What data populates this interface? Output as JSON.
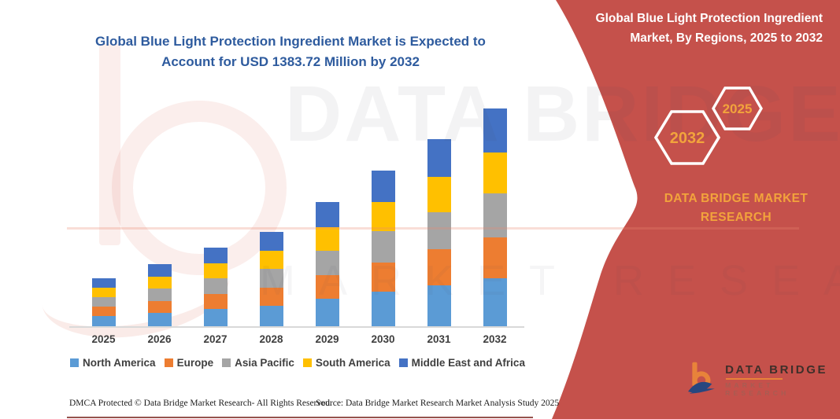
{
  "chart": {
    "title": "Global Blue Light Protection Ingredient Market is Expected to Account for USD 1383.72 Million by 2032",
    "title_color": "#2E5B9E"
  },
  "chart_data": {
    "type": "bar",
    "subtype": "stacked-vertical",
    "categories": [
      "2025",
      "2026",
      "2027",
      "2028",
      "2029",
      "2030",
      "2031",
      "2032"
    ],
    "series": [
      {
        "name": "North America",
        "color": "#5B9BD5",
        "values": [
          67,
          87,
          110,
          132,
          174,
          218,
          262,
          304.4
        ]
      },
      {
        "name": "Europe",
        "color": "#ED7D31",
        "values": [
          58,
          75,
          95,
          114,
          150,
          188,
          226,
          262.9
        ]
      },
      {
        "name": "Asia Pacific",
        "color": "#A5A5A5",
        "values": [
          61,
          79,
          100,
          120,
          158,
          198,
          238,
          276.7
        ]
      },
      {
        "name": "South America",
        "color": "#FFC000",
        "values": [
          58,
          75,
          95,
          114,
          150,
          188,
          226,
          262.9
        ]
      },
      {
        "name": "Middle East and Africa",
        "color": "#4472C4",
        "values": [
          61,
          79,
          100,
          120,
          158,
          198,
          238,
          276.7
        ]
      }
    ],
    "totals": [
      305,
      395,
      500,
      600,
      790,
      990,
      1190,
      1383.72
    ],
    "unit": "USD Million",
    "labeled_value": "USD 1383.72 Million by 2032",
    "value_note": "segment values estimated from bar pixel heights; no value axis shown in source",
    "ylim": [
      0,
      1415
    ],
    "grid": false,
    "legend_position": "bottom",
    "xlabel": "",
    "ylabel": ""
  },
  "side_panel": {
    "background_color": "#C5514B",
    "title": "Global Blue Light Protection Ingredient Market, By Regions, 2025 to 2032",
    "hexagon_left_year": "2032",
    "hexagon_right_year": "2025",
    "hexagon_text_color": "#F2A33C",
    "brand_text": "DATA BRIDGE MARKET RESEARCH"
  },
  "logo": {
    "name": "DATA BRIDGE",
    "subtitle": "MARKET RESEARCH",
    "mark_orange": "#E8833A",
    "mark_blue": "#27477F"
  },
  "watermark": {
    "line1": "DATA BRIDGE",
    "line2": "MARKET RESEARCH"
  },
  "footer": {
    "left": "DMCA Protected © Data Bridge Market Research-  All Rights Reserved.",
    "source": "Source: Data Bridge Market Research  Market Analysis Study 2025"
  }
}
